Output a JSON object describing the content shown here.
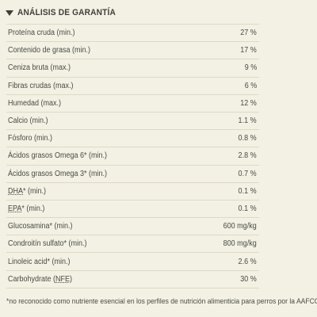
{
  "header": {
    "title": "ANÁLISIS DE GARANTÍA",
    "toggle_icon": "triangle-down-icon"
  },
  "rows": [
    {
      "label": "Proteína cruda (min.)",
      "value": "27 %"
    },
    {
      "label": "Contenido de grasa (min.)",
      "value": "17 %"
    },
    {
      "label": "Ceniza bruta (max.)",
      "value": "9 %"
    },
    {
      "label": "Fibras crudas (max.)",
      "value": "6 %"
    },
    {
      "label": "Humedad (max.)",
      "value": "12 %"
    },
    {
      "label": "Calcio (min.)",
      "value": "1.1 %"
    },
    {
      "label": "Fósforo (min.)",
      "value": "0.8 %"
    },
    {
      "label": "Ácidos grasos Omega 6* (min.)",
      "value": "2.8 %"
    },
    {
      "label": "Ácidos grasos Omega 3* (min.)",
      "value": "0.7 %"
    },
    {
      "label_abbr": "DHA",
      "label_rest": "* (min.)",
      "value": "0.1 %"
    },
    {
      "label_abbr": "EPA",
      "label_rest": "* (min.)",
      "value": "0.1 %"
    },
    {
      "label": "Glucosamina* (min.)",
      "value": "600 mg/kg"
    },
    {
      "label": "Condroitín sulfato* (min.)",
      "value": "800 mg/kg"
    },
    {
      "label": "Linoleic acid* (min.)",
      "value": "2.6 %"
    },
    {
      "label_pre": "Carbohydrate (",
      "label_abbr": "NFE",
      "label_post": ")",
      "value": "30 %"
    }
  ],
  "footnote": "*no reconocido como nutriente esencial en los perfiles de nutrición alimenticia para perros por la AAFCO."
}
